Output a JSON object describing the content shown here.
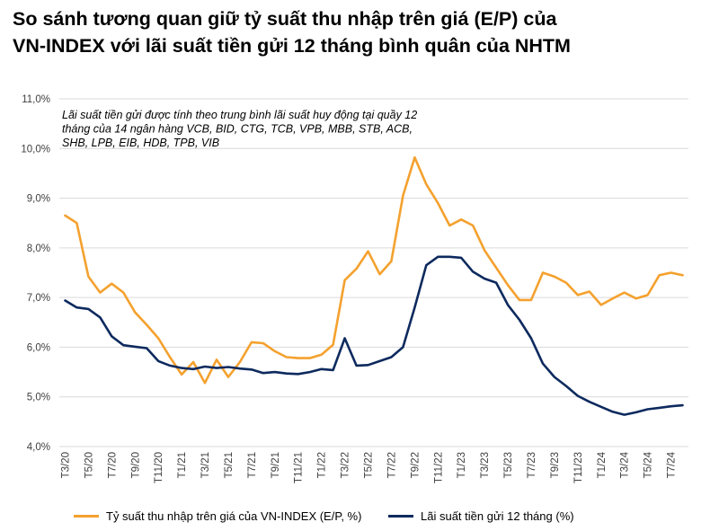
{
  "title_line1": "So sánh tương quan giữ tỷ suất thu nhập trên giá (E/P) của",
  "title_line2": "VN-INDEX với lãi suất tiền gửi 12 tháng bình quân của NHTM",
  "chart_data": {
    "type": "line",
    "title": "So sánh tương quan giữ tỷ suất thu nhập trên giá (E/P) của VN-INDEX với lãi suất tiền gửi 12 tháng bình quân của NHTM",
    "annotation": [
      "Lãi suất tiền gửi được tính theo trung bình lãi suất huy động tại quầy 12",
      "tháng của 14 ngân hàng VCB, BID, CTG, TCB, VPB, MBB, STB, ACB,",
      "SHB, LPB, EIB, HDB, TPB, VIB"
    ],
    "y_tick_labels": [
      "4,0%",
      "5,0%",
      "6,0%",
      "7,0%",
      "8,0%",
      "9,0%",
      "10,0%",
      "11,0%"
    ],
    "ylim": [
      4.0,
      11.0
    ],
    "y_unit": "%",
    "x_tick_labels": [
      "T3/20",
      "T5/20",
      "T7/20",
      "T9/20",
      "T11/20",
      "T1/21",
      "T3/21",
      "T5/21",
      "T7/21",
      "T9/21",
      "T11/21",
      "T1/22",
      "T3/22",
      "T5/22",
      "T7/22",
      "T9/22",
      "T11/22",
      "T1/23",
      "T3/23",
      "T5/23",
      "T7/23",
      "T9/23",
      "T11/23",
      "T1/24",
      "T3/24",
      "T5/24",
      "T7/24"
    ],
    "x": [
      "T3/20",
      "T4/20",
      "T5/20",
      "T6/20",
      "T7/20",
      "T8/20",
      "T9/20",
      "T10/20",
      "T11/20",
      "T12/20",
      "T1/21",
      "T2/21",
      "T3/21",
      "T4/21",
      "T5/21",
      "T6/21",
      "T7/21",
      "T8/21",
      "T9/21",
      "T10/21",
      "T11/21",
      "T12/21",
      "T1/22",
      "T2/22",
      "T3/22",
      "T4/22",
      "T5/22",
      "T6/22",
      "T7/22",
      "T8/22",
      "T9/22",
      "T10/22",
      "T11/22",
      "T12/22",
      "T1/23",
      "T2/23",
      "T3/23",
      "T4/23",
      "T5/23",
      "T6/23",
      "T7/23",
      "T8/23",
      "T9/23",
      "T10/23",
      "T11/23",
      "T12/23",
      "T1/24",
      "T2/24",
      "T3/24",
      "T4/24",
      "T5/24",
      "T6/24",
      "T7/24",
      "T8/24"
    ],
    "grid": true,
    "legend_position": "bottom",
    "series": [
      {
        "name": "Tỷ suất thu nhập trên giá của VN-INDEX (E/P, %)",
        "color": "#F4A12E",
        "values": [
          8.65,
          8.5,
          7.42,
          7.1,
          7.28,
          7.1,
          6.7,
          6.45,
          6.18,
          5.8,
          5.45,
          5.7,
          5.28,
          5.75,
          5.4,
          5.7,
          6.1,
          6.08,
          5.92,
          5.8,
          5.78,
          5.78,
          5.85,
          6.05,
          7.35,
          7.58,
          7.93,
          7.47,
          7.73,
          9.05,
          9.82,
          9.28,
          8.9,
          8.45,
          8.57,
          8.45,
          7.95,
          7.6,
          7.25,
          6.95,
          6.95,
          7.5,
          7.42,
          7.3,
          7.05,
          7.12,
          6.85,
          6.98,
          7.1,
          6.98,
          7.05,
          7.45,
          7.5,
          7.45
        ]
      },
      {
        "name": "Lãi suất tiền gửi 12 tháng (%)",
        "color": "#0D2A5E",
        "values": [
          6.94,
          6.8,
          6.77,
          6.6,
          6.22,
          6.04,
          6.01,
          5.98,
          5.72,
          5.63,
          5.58,
          5.56,
          5.61,
          5.58,
          5.6,
          5.57,
          5.55,
          5.48,
          5.5,
          5.47,
          5.46,
          5.5,
          5.56,
          5.54,
          6.18,
          5.63,
          5.64,
          5.72,
          5.8,
          6.0,
          6.8,
          7.65,
          7.82,
          7.82,
          7.8,
          7.52,
          7.38,
          7.3,
          6.85,
          6.55,
          6.18,
          5.67,
          5.4,
          5.22,
          5.02,
          4.9,
          4.8,
          4.7,
          4.64,
          4.69,
          4.75,
          4.78,
          4.81,
          4.83
        ]
      }
    ]
  }
}
